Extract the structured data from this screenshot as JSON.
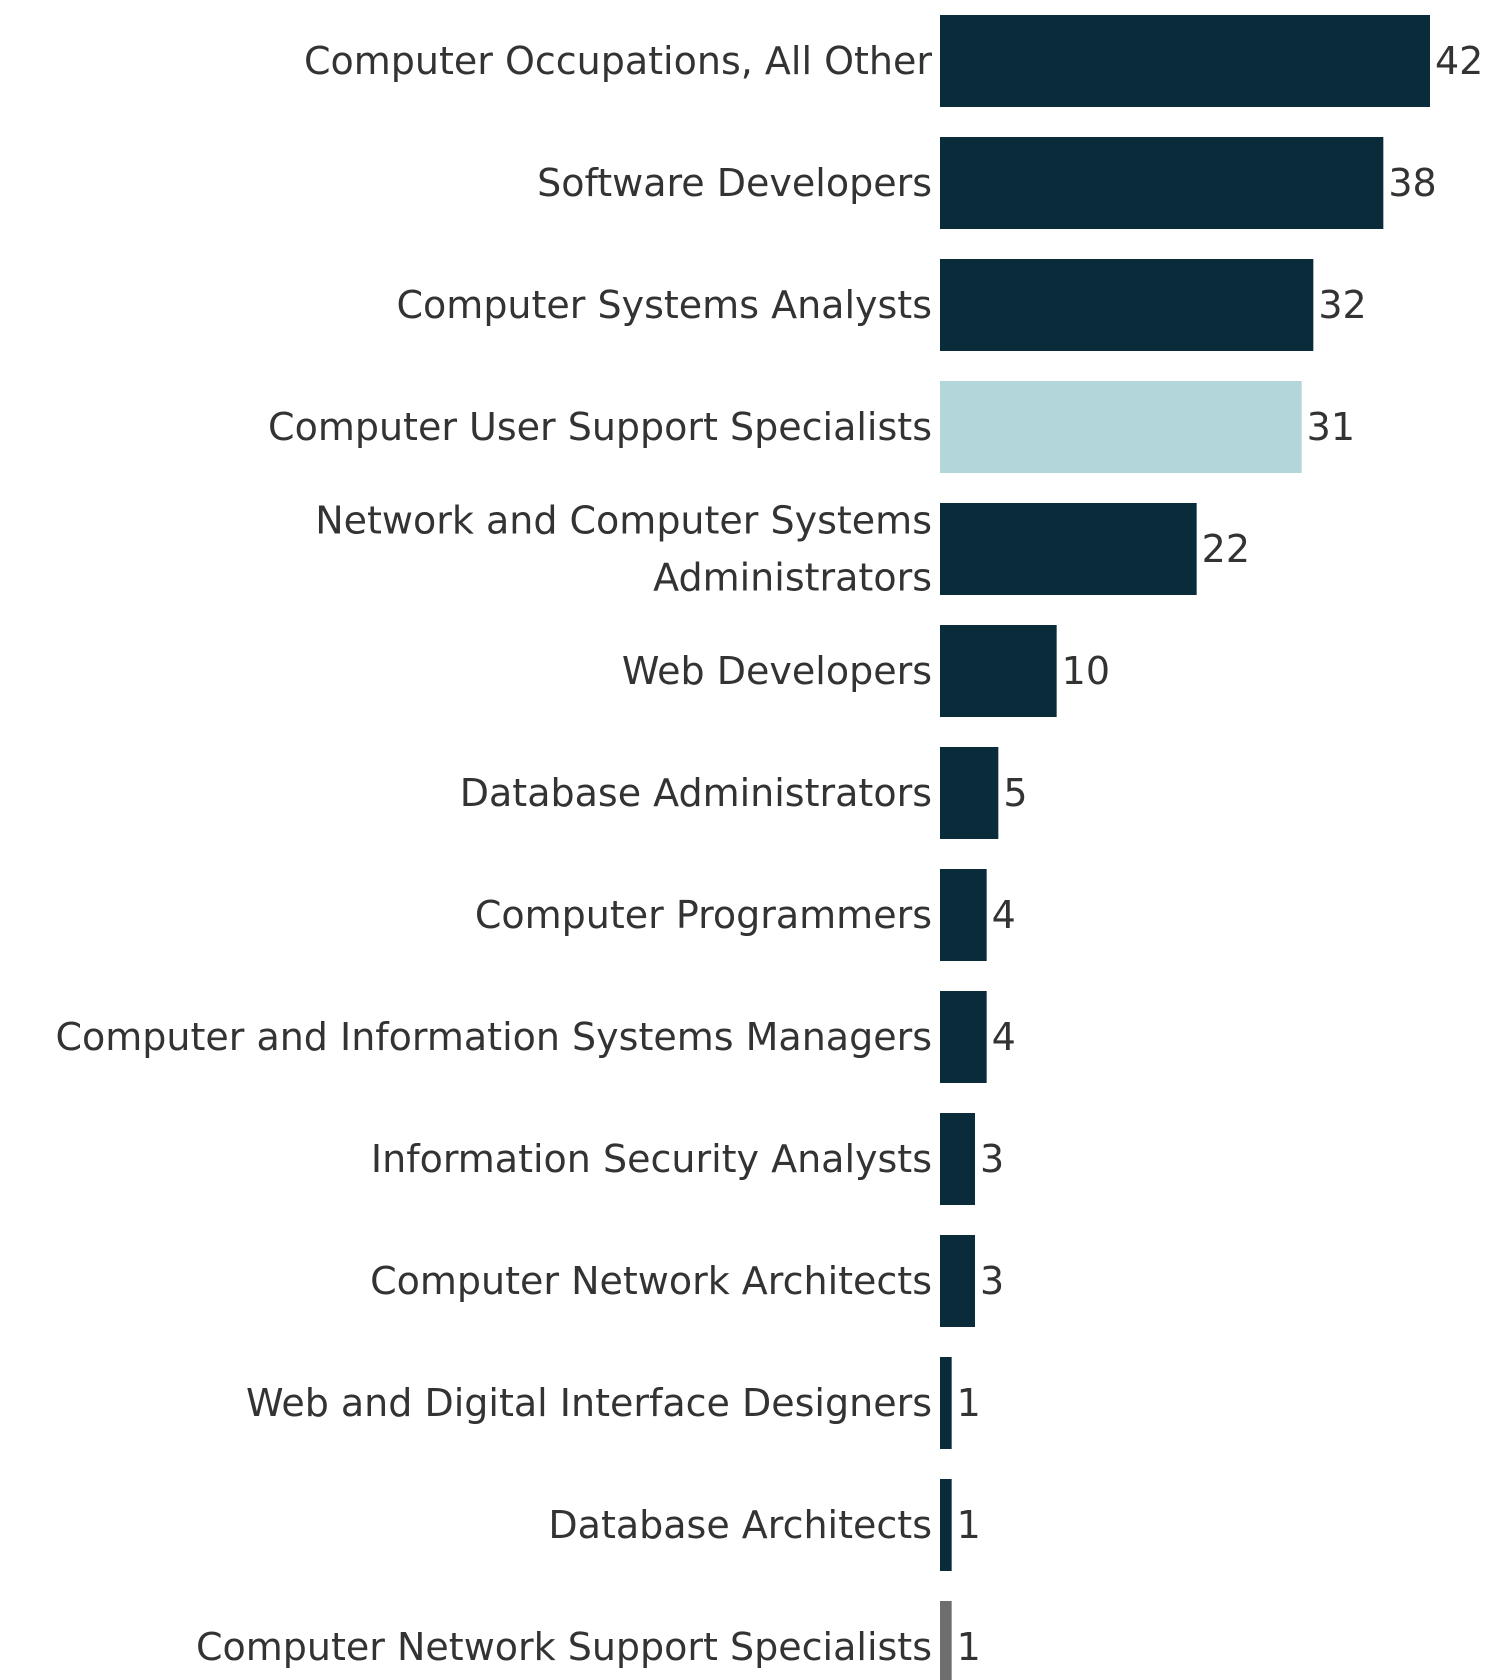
{
  "chart_data": {
    "type": "bar",
    "orientation": "horizontal",
    "title": "",
    "xlabel": "",
    "ylabel": "",
    "categories": [
      "Computer Occupations, All Other",
      "Software Developers",
      "Computer Systems Analysts",
      "Computer User Support Specialists",
      "Network and Computer Systems Administrators",
      "Web Developers",
      "Database Administrators",
      "Computer Programmers",
      "Computer and Information Systems Managers",
      "Information Security Analysts",
      "Computer Network Architects",
      "Web and Digital Interface Designers",
      "Database Architects",
      "Computer Network Support Specialists"
    ],
    "category_label_lines": [
      [
        "Computer Occupations, All Other"
      ],
      [
        "Software Developers"
      ],
      [
        "Computer Systems Analysts"
      ],
      [
        "Computer User Support Specialists"
      ],
      [
        "Network and Computer Systems",
        "Administrators"
      ],
      [
        "Web Developers"
      ],
      [
        "Database Administrators"
      ],
      [
        "Computer Programmers"
      ],
      [
        "Computer and Information Systems Managers"
      ],
      [
        "Information Security Analysts"
      ],
      [
        "Computer Network Architects"
      ],
      [
        "Web and Digital Interface Designers"
      ],
      [
        "Database Architects"
      ],
      [
        "Computer Network Support Specialists"
      ]
    ],
    "values": [
      42,
      38,
      32,
      31,
      22,
      10,
      5,
      4,
      4,
      3,
      3,
      1,
      1,
      1
    ],
    "value_labels": [
      "42",
      "38",
      "32",
      "31",
      "22",
      "10",
      "5",
      "4",
      "4",
      "3",
      "3",
      "1",
      "1",
      "1"
    ],
    "bar_colors": [
      "#0a2b3a",
      "#0a2b3a",
      "#0a2b3a",
      "#b3d6da",
      "#0a2b3a",
      "#0a2b3a",
      "#0a2b3a",
      "#0a2b3a",
      "#0a2b3a",
      "#0a2b3a",
      "#0a2b3a",
      "#0a2b3a",
      "#0a2b3a",
      "#6e6e6e"
    ],
    "xlim": [
      0,
      42
    ],
    "grid": false,
    "legend": false,
    "axes_visible": false
  }
}
